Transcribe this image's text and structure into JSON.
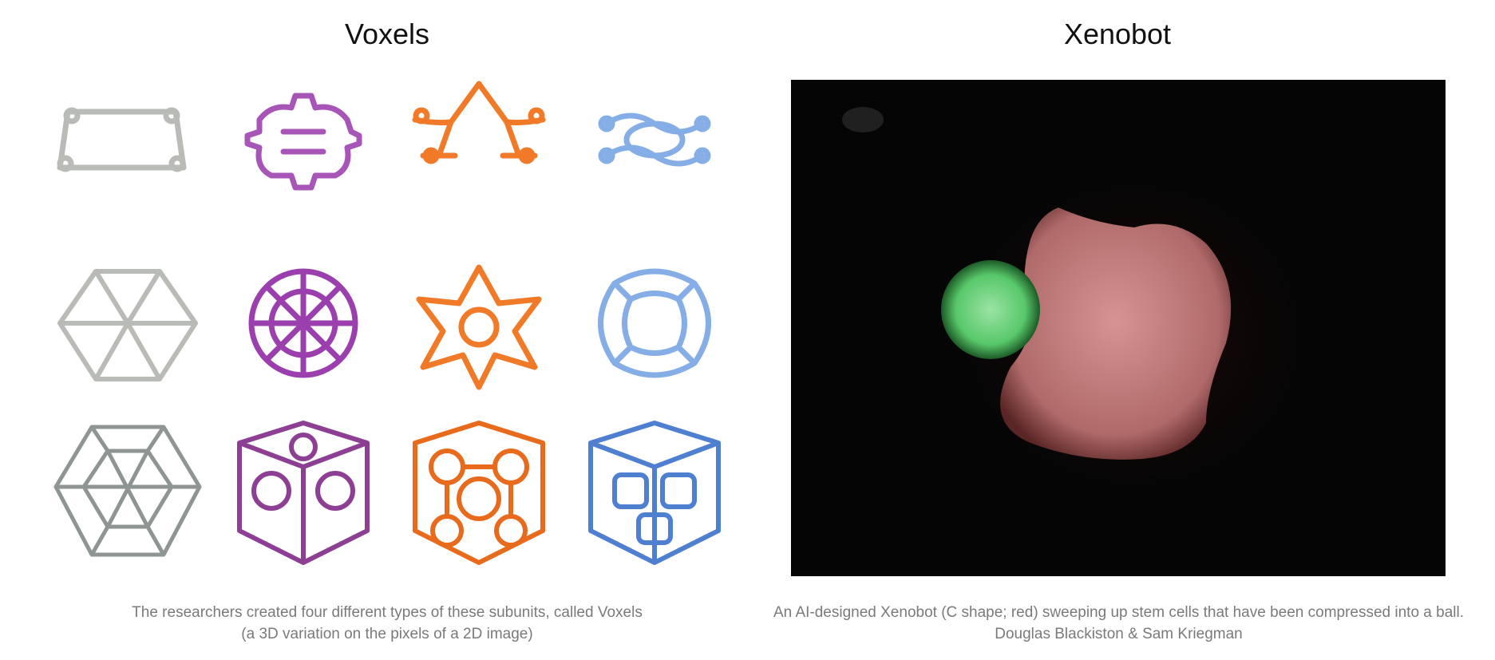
{
  "voxels": {
    "title": "Voxels",
    "caption_line1": "The researchers created four different types of these subunits, called Voxels",
    "caption_line2": "(a 3D variation on the pixels of a 2D image)",
    "colors": [
      "#c9cbc6",
      "#a855b8",
      "#f07a28",
      "#86aee6"
    ],
    "rows": [
      "flat-frame",
      "shell",
      "lattice"
    ]
  },
  "xenobot": {
    "title": "Xenobot",
    "caption_line1": "An AI-designed Xenobot (C shape; red) sweeping up stem cells that have been compressed into a ball.",
    "caption_line2": "Douglas Blackiston & Sam Kriegman",
    "colors": {
      "background": "#050505",
      "stem_cells": "#6fd77e",
      "xenobot": "#c27a7a"
    }
  }
}
